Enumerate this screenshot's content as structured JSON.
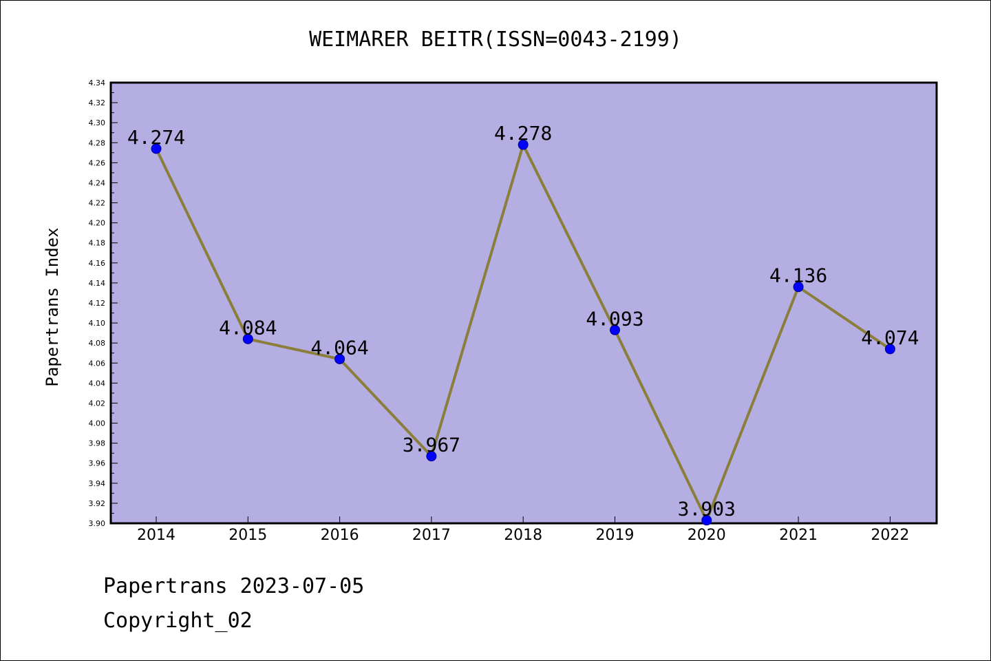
{
  "chart_data": {
    "type": "line",
    "title": "WEIMARER BEITR(ISSN=0043-2199)",
    "xlabel": "",
    "ylabel": "Papertrans Index",
    "categories": [
      "2014",
      "2015",
      "2016",
      "2017",
      "2018",
      "2019",
      "2020",
      "2021",
      "2022"
    ],
    "series": [
      {
        "values": [
          4.274,
          4.084,
          4.064,
          3.967,
          4.278,
          4.093,
          3.903,
          4.136,
          4.074
        ],
        "labels": [
          "4.274",
          "4.084",
          "4.064",
          "3.967",
          "4.278",
          "4.093",
          "3.903",
          "4.136",
          "4.074"
        ]
      }
    ],
    "ylim": [
      3.9,
      4.34
    ],
    "yticks": [
      "3.90",
      "3.92",
      "3.94",
      "3.96",
      "3.98",
      "4.00",
      "4.02",
      "4.04",
      "4.06",
      "4.08",
      "4.10",
      "4.12",
      "4.14",
      "4.16",
      "4.18",
      "4.20",
      "4.22",
      "4.24",
      "4.26",
      "4.28",
      "4.30",
      "4.32",
      "4.34"
    ],
    "grid": false,
    "legend": "none",
    "colors": {
      "plot_background": "#b4aee2",
      "line": "#8b7d3a",
      "marker": "#0000ff",
      "marker_edge": "#00008b"
    }
  },
  "footer": {
    "line1": "Papertrans 2023-07-05",
    "line2": "Copyright_02"
  }
}
